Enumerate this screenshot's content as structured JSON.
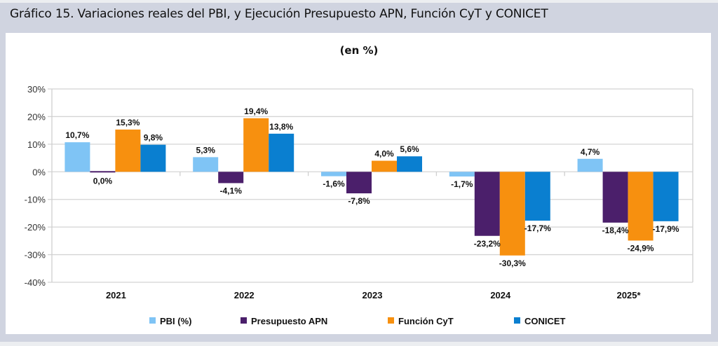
{
  "header": {
    "title": "Gráfico 15. Variaciones reales del PBI, y Ejecución Presupuesto APN, Función CyT y CONICET"
  },
  "chart_data": {
    "type": "bar",
    "title": "Gráfico 15. Variaciones reales del PBI, y Ejecución Presupuesto APN, Función CyT y CONICET",
    "subtitle": "(en %)",
    "xlabel": "",
    "ylabel": "",
    "categories": [
      "2021",
      "2022",
      "2023",
      "2024",
      "2025*"
    ],
    "ylim": [
      -40,
      30
    ],
    "yticks": [
      30,
      20,
      10,
      0,
      -10,
      -20,
      -30,
      -40
    ],
    "ytick_labels": [
      "30%",
      "20%",
      "10%",
      "0%",
      "-10%",
      "-20%",
      "-30%",
      "-40%"
    ],
    "grid": true,
    "legend_position": "bottom",
    "series": [
      {
        "name": "PBI (%)",
        "color": "#7fc4f5",
        "values": [
          10.7,
          5.3,
          -1.6,
          -1.7,
          4.7
        ],
        "labels": [
          "10,7%",
          "5,3%",
          "-1,6%",
          "-1,7%",
          "4,7%"
        ]
      },
      {
        "name": "Presupuesto APN",
        "color": "#4b1f6b",
        "values": [
          0.0,
          -4.1,
          -7.8,
          -23.2,
          -18.4
        ],
        "labels": [
          "0,0%",
          "-4,1%",
          "-7,8%",
          "-23,2%",
          "-18,4%"
        ]
      },
      {
        "name": "Función CyT",
        "color": "#f7900f",
        "values": [
          15.3,
          19.4,
          4.0,
          -30.3,
          -24.9
        ],
        "labels": [
          "15,3%",
          "19,4%",
          "4,0%",
          "-30,3%",
          "-24,9%"
        ]
      },
      {
        "name": "CONICET",
        "color": "#0a7fd0",
        "values": [
          9.8,
          13.8,
          5.6,
          -17.7,
          -17.9
        ],
        "labels": [
          "9,8%",
          "13,8%",
          "5,6%",
          "-17,7%",
          "-17,9%"
        ]
      }
    ]
  }
}
